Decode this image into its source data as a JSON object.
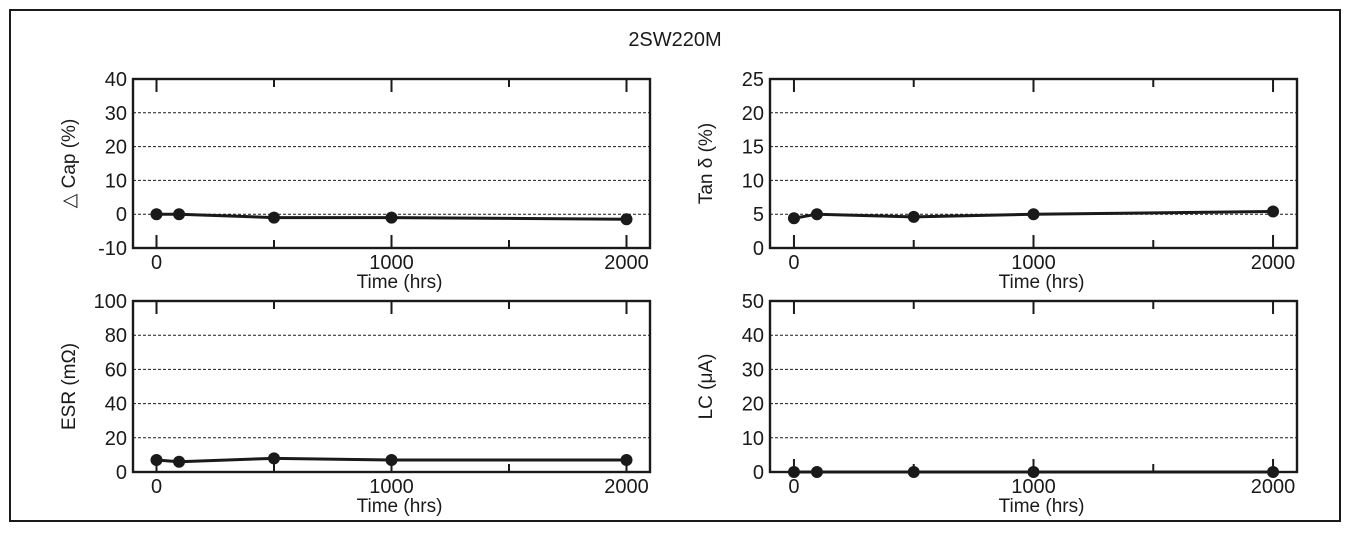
{
  "title": "2SW220M",
  "chart_data": [
    {
      "type": "line",
      "ylabel": "△ Cap (%)",
      "xlabel": "Time (hrs)",
      "xlim": [
        -100,
        2100
      ],
      "ylim": [
        -10,
        40
      ],
      "xticks": [
        0,
        1000,
        2000
      ],
      "yticks": [
        -10,
        0,
        10,
        20,
        30,
        40
      ],
      "x": [
        0,
        96,
        500,
        1000,
        2000
      ],
      "series": [
        {
          "values": [
            0,
            0,
            -1,
            -1,
            -1.5
          ]
        }
      ],
      "grid": true
    },
    {
      "type": "line",
      "ylabel": "Tan δ (%)",
      "xlabel": "Time (hrs)",
      "xlim": [
        -100,
        2100
      ],
      "ylim": [
        0,
        25
      ],
      "xticks": [
        0,
        1000,
        2000
      ],
      "yticks": [
        0,
        5,
        10,
        15,
        20,
        25
      ],
      "x": [
        0,
        96,
        500,
        1000,
        2000
      ],
      "series": [
        {
          "values": [
            4.4,
            5.0,
            4.6,
            5.0,
            5.4
          ]
        }
      ],
      "grid": true
    },
    {
      "type": "line",
      "ylabel": "ESR (mΩ)",
      "xlabel": "Time (hrs)",
      "xlim": [
        -100,
        2100
      ],
      "ylim": [
        0,
        100
      ],
      "xticks": [
        0,
        1000,
        2000
      ],
      "yticks": [
        0,
        20,
        40,
        60,
        80,
        100
      ],
      "x": [
        0,
        96,
        500,
        1000,
        2000
      ],
      "series": [
        {
          "values": [
            7,
            6,
            8,
            7,
            7
          ]
        }
      ],
      "grid": true
    },
    {
      "type": "line",
      "ylabel": "LC (μA)",
      "xlabel": "Time (hrs)",
      "xlim": [
        -100,
        2100
      ],
      "ylim": [
        0,
        50
      ],
      "xticks": [
        0,
        1000,
        2000
      ],
      "yticks": [
        0,
        10,
        20,
        30,
        40,
        50
      ],
      "x": [
        0,
        96,
        500,
        1000,
        2000
      ],
      "series": [
        {
          "values": [
            0,
            0,
            0,
            0,
            0
          ]
        }
      ],
      "grid": true
    }
  ]
}
